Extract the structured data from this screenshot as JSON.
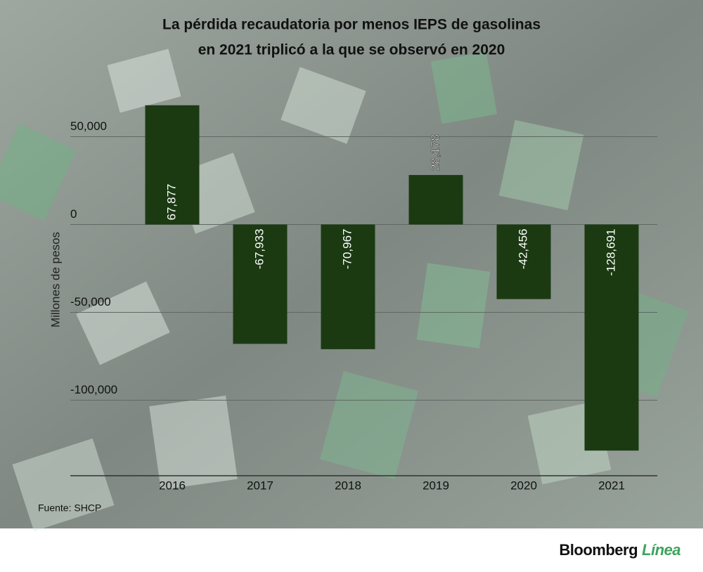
{
  "chart_data": {
    "type": "bar",
    "title": [
      "La pérdida recaudatoria por menos IEPS de gasolinas",
      "en 2021 triplicó a la que se observó en 2020"
    ],
    "y_label": "Millones de pesos",
    "categories": [
      "2016",
      "2017",
      "2018",
      "2019",
      "2020",
      "2021"
    ],
    "values": [
      67877,
      -67933,
      -70967,
      28178,
      -42456,
      -128691
    ],
    "value_labels": [
      "67,877",
      "-67,933",
      "-70,967",
      "28,178",
      "-42,456",
      "-128,691"
    ],
    "color": "#1b3a12",
    "ylim": [
      -143000,
      80000
    ],
    "yticks": [
      {
        "value": 50000,
        "label": "50,000"
      },
      0,
      {
        "value": -50000,
        "label": "-50,000"
      },
      {
        "value": -100000,
        "label": "-100,000"
      }
    ],
    "grid": true,
    "source": "Fuente: SHCP"
  },
  "footer": {
    "brand": "Bloomberg",
    "product": "Línea"
  }
}
